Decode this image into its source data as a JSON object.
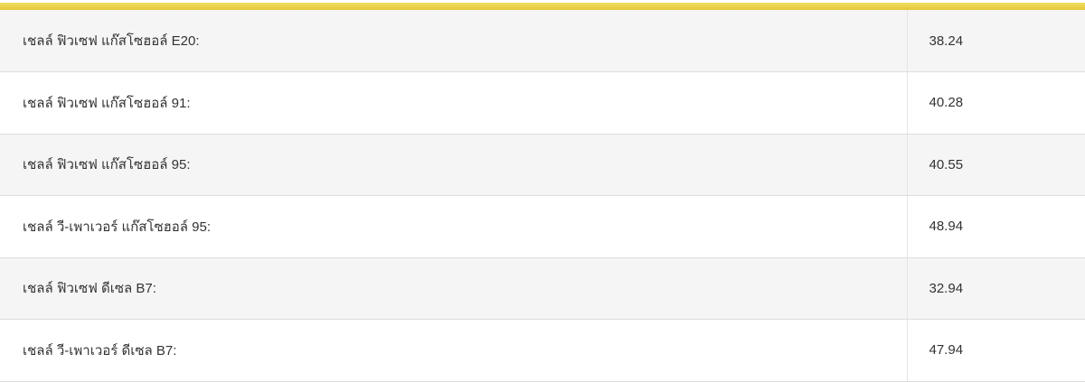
{
  "accent_color": "#e8cb45",
  "prices": [
    {
      "name": "เชลล์ ฟิวเซฟ แก๊สโซฮอล์ E20:",
      "price": "38.24"
    },
    {
      "name": "เชลล์ ฟิวเซฟ แก๊สโซฮอล์ 91:",
      "price": "40.28"
    },
    {
      "name": "เชลล์ ฟิวเซฟ แก๊สโซฮอล์ 95:",
      "price": "40.55"
    },
    {
      "name": "เชลล์ วี-เพาเวอร์ แก๊สโซฮอล์ 95:",
      "price": "48.94"
    },
    {
      "name": "เชลล์ ฟิวเซฟ ดีเซล B7:",
      "price": "32.94"
    },
    {
      "name": "เชลล์ วี-เพาเวอร์ ดีเซล B7:",
      "price": "47.94"
    }
  ]
}
